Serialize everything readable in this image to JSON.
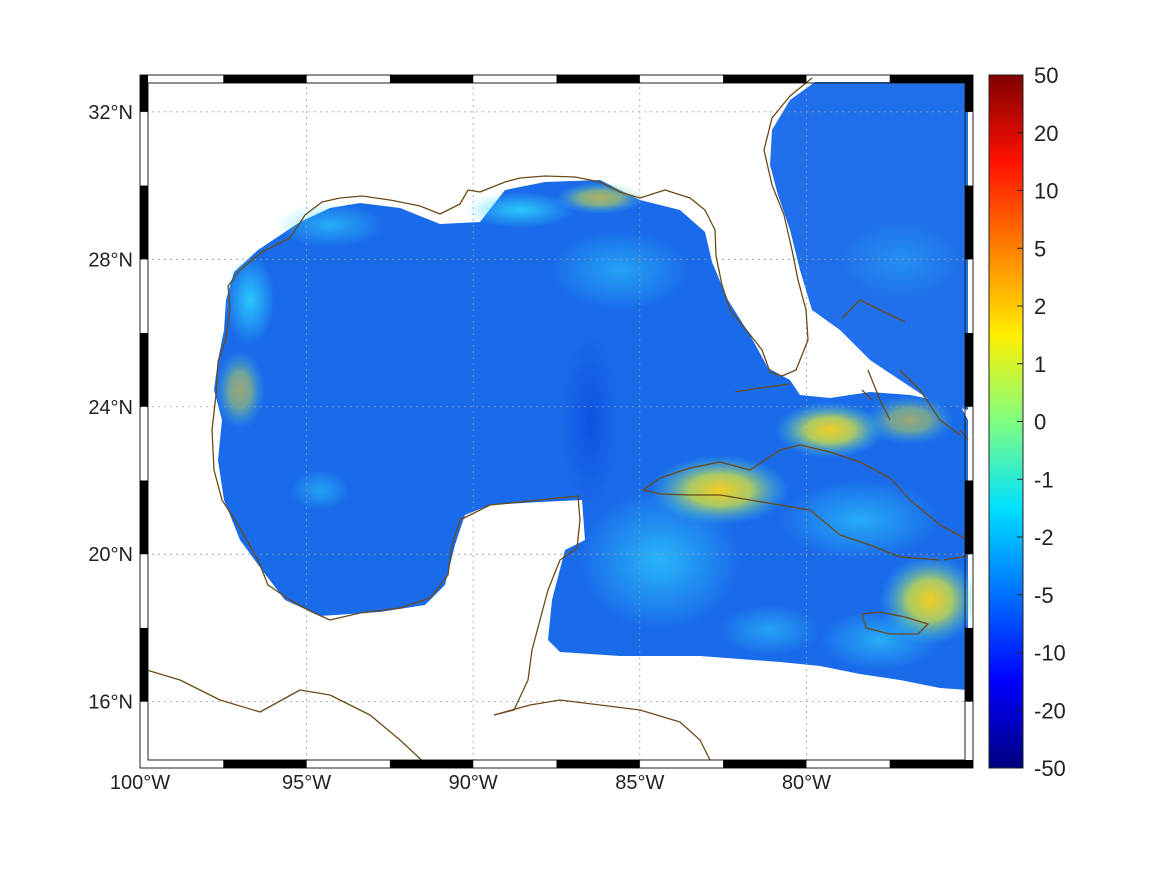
{
  "map": {
    "lon_range": [
      -100,
      -75
    ],
    "lat_range": [
      14.2,
      33
    ],
    "lon_ticks": [
      {
        "value": -100,
        "label": "100°W"
      },
      {
        "value": -95,
        "label": "95°W"
      },
      {
        "value": -90,
        "label": "90°W"
      },
      {
        "value": -85,
        "label": "85°W"
      },
      {
        "value": -80,
        "label": "80°W"
      }
    ],
    "lat_ticks": [
      {
        "value": 32,
        "label": "32°N"
      },
      {
        "value": 28,
        "label": "28°N"
      },
      {
        "value": 24,
        "label": "24°N"
      },
      {
        "value": 20,
        "label": "20°N"
      },
      {
        "value": 16,
        "label": "16°N"
      }
    ],
    "grid": true,
    "coastline_color": "#6b4a1a",
    "land_color": "#ffffff"
  },
  "colorbar": {
    "ticks": [
      "50",
      "20",
      "10",
      "5",
      "2",
      "1",
      "0",
      "-1",
      "-2",
      "-5",
      "-10",
      "-20",
      "-50"
    ],
    "colormap": [
      "#000080",
      "#0000ff",
      "#0080ff",
      "#00ffff",
      "#80ff80",
      "#ffff00",
      "#ff8000",
      "#ff0000",
      "#800000"
    ]
  },
  "field_features": {
    "base_color": "#1a6bea",
    "warm_patches": [
      {
        "region": "Cuba",
        "level": "2"
      },
      {
        "region": "Florida Keys / Bahamas",
        "level": "2"
      },
      {
        "region": "Jamaica",
        "level": "2"
      },
      {
        "region": "Louisiana coast",
        "level": "-1"
      }
    ]
  }
}
